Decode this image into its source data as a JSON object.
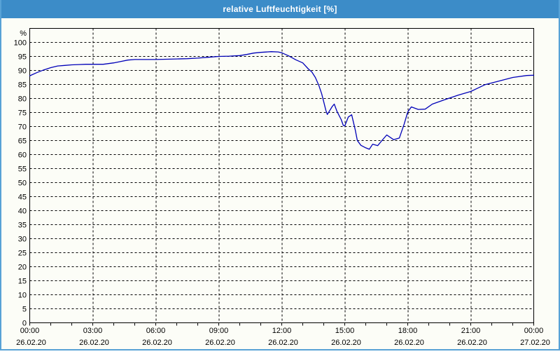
{
  "window": {
    "title": "relative Luftfeuchtigkeit [%]",
    "title_bar_color": "#3c8cc8",
    "border_color": "#58a2d6",
    "background_color": "#fcfdf7"
  },
  "chart_data": {
    "type": "line",
    "title": "relative Luftfeuchtigkeit [%]",
    "ylabel": "%",
    "xlabel": "",
    "ylim": [
      0,
      105
    ],
    "grid": "dashed",
    "legend": "none",
    "line_color": "#0000b8",
    "axis_color": "#000000",
    "y_ticks": [
      0,
      5,
      10,
      15,
      20,
      25,
      30,
      35,
      40,
      45,
      50,
      55,
      60,
      65,
      70,
      75,
      80,
      85,
      90,
      95,
      100
    ],
    "x_minor_tick_interval_hours": 1,
    "x_major_ticks": [
      {
        "hour": 0,
        "time": "00:00",
        "date": "26.02.20"
      },
      {
        "hour": 3,
        "time": "03:00",
        "date": "26.02.20"
      },
      {
        "hour": 6,
        "time": "06:00",
        "date": "26.02.20"
      },
      {
        "hour": 9,
        "time": "09:00",
        "date": "26.02.20"
      },
      {
        "hour": 12,
        "time": "12:00",
        "date": "26.02.20"
      },
      {
        "hour": 15,
        "time": "15:00",
        "date": "26.02.20"
      },
      {
        "hour": 18,
        "time": "18:00",
        "date": "26.02.20"
      },
      {
        "hour": 21,
        "time": "21:00",
        "date": "26.02.20"
      },
      {
        "hour": 24,
        "time": "00:00",
        "date": "27.02.20"
      }
    ],
    "series": [
      {
        "name": "relative Luftfeuchtigkeit",
        "points": [
          [
            0,
            88.1
          ],
          [
            0.33,
            89.2
          ],
          [
            0.67,
            90.2
          ],
          [
            1,
            91.0
          ],
          [
            1.33,
            91.6
          ],
          [
            1.67,
            91.8
          ],
          [
            2,
            92.0
          ],
          [
            2.33,
            92.1
          ],
          [
            2.67,
            92.2
          ],
          [
            3,
            92.2
          ],
          [
            3.5,
            92.2
          ],
          [
            4,
            92.7
          ],
          [
            4.33,
            93.2
          ],
          [
            4.67,
            93.7
          ],
          [
            5,
            93.9
          ],
          [
            5.5,
            93.9
          ],
          [
            6,
            93.9
          ],
          [
            6.5,
            94.0
          ],
          [
            7,
            94.1
          ],
          [
            7.5,
            94.2
          ],
          [
            8,
            94.4
          ],
          [
            8.5,
            94.7
          ],
          [
            9,
            95.0
          ],
          [
            9.5,
            95.1
          ],
          [
            10,
            95.3
          ],
          [
            10.33,
            95.7
          ],
          [
            10.67,
            96.2
          ],
          [
            11,
            96.45
          ],
          [
            11.5,
            96.7
          ],
          [
            11.83,
            96.6
          ],
          [
            12,
            96.3
          ],
          [
            12.33,
            95.2
          ],
          [
            12.67,
            93.8
          ],
          [
            13,
            92.7
          ],
          [
            13.27,
            90.5
          ],
          [
            13.43,
            89.5
          ],
          [
            13.6,
            87.5
          ],
          [
            13.77,
            84.6
          ],
          [
            13.9,
            81.7
          ],
          [
            14,
            78.8
          ],
          [
            14.1,
            75.8
          ],
          [
            14.17,
            74.3
          ],
          [
            14.4,
            77.1
          ],
          [
            14.5,
            78.0
          ],
          [
            14.63,
            75.4
          ],
          [
            14.83,
            72.5
          ],
          [
            14.93,
            70.4
          ],
          [
            15,
            70.2
          ],
          [
            15.17,
            73.4
          ],
          [
            15.33,
            74.2
          ],
          [
            15.5,
            68.8
          ],
          [
            15.6,
            65.0
          ],
          [
            15.77,
            63.3
          ],
          [
            16,
            62.4
          ],
          [
            16.17,
            61.9
          ],
          [
            16.33,
            63.7
          ],
          [
            16.57,
            63.2
          ],
          [
            16.77,
            65.0
          ],
          [
            17,
            67.0
          ],
          [
            17.33,
            65.3
          ],
          [
            17.6,
            65.9
          ],
          [
            17.83,
            70.9
          ],
          [
            18,
            75.2
          ],
          [
            18.17,
            77.0
          ],
          [
            18.5,
            76.1
          ],
          [
            18.83,
            76.2
          ],
          [
            19.17,
            78.0
          ],
          [
            19.77,
            79.6
          ],
          [
            20.4,
            81.2
          ],
          [
            21,
            82.5
          ],
          [
            21.67,
            84.9
          ],
          [
            22.33,
            86.2
          ],
          [
            23,
            87.5
          ],
          [
            23.67,
            88.2
          ],
          [
            24,
            88.3
          ]
        ]
      }
    ]
  }
}
